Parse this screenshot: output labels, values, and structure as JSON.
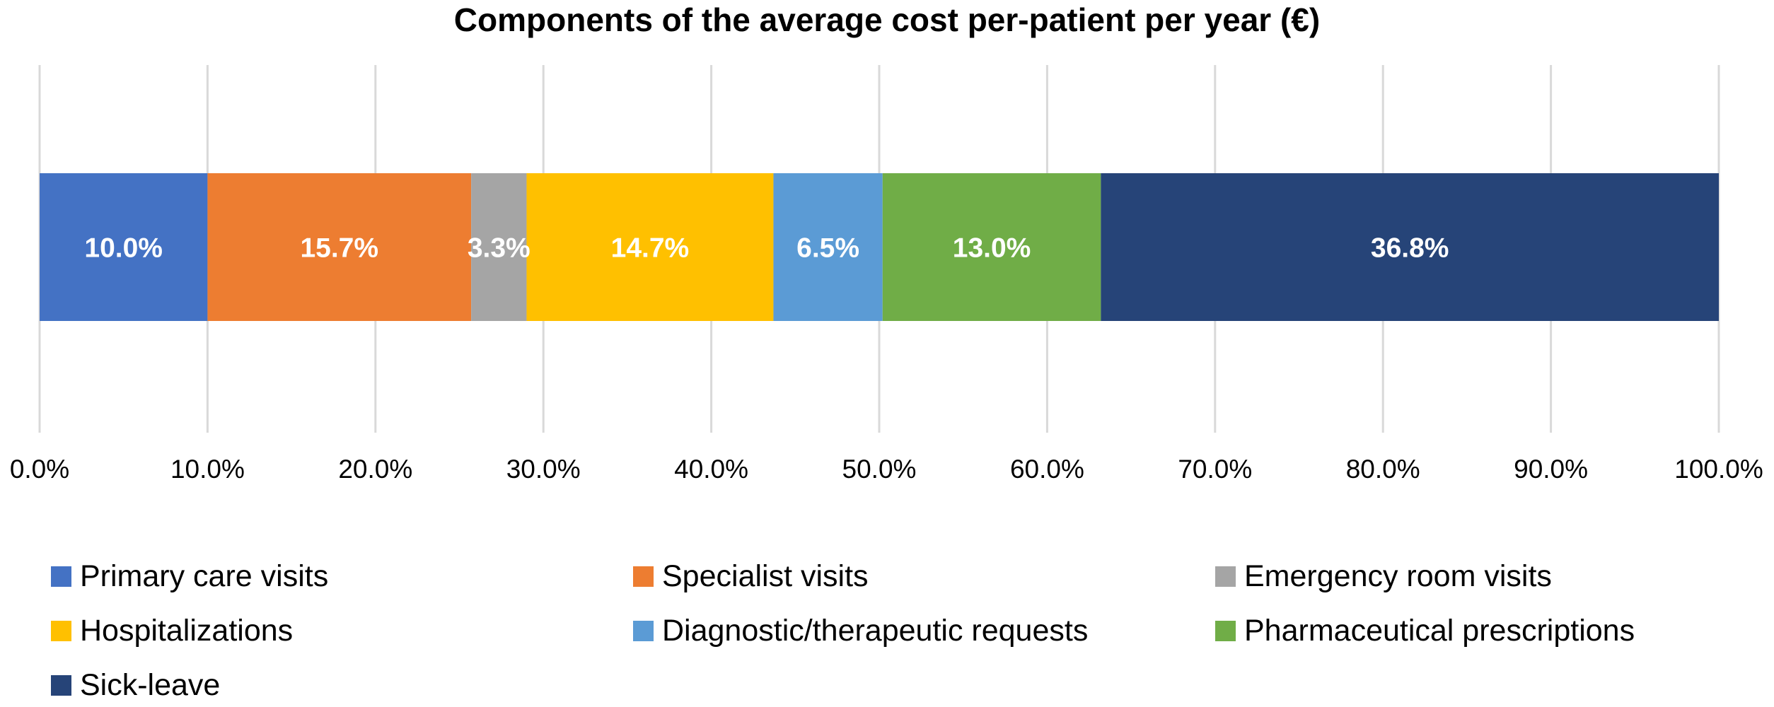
{
  "chart_data": {
    "type": "bar",
    "orientation": "horizontal",
    "stacked": true,
    "title": "Components of the average cost per-patient per year (€)",
    "xlim": [
      0,
      100
    ],
    "x_ticks": [
      "0.0%",
      "10.0%",
      "20.0%",
      "30.0%",
      "40.0%",
      "50.0%",
      "60.0%",
      "70.0%",
      "80.0%",
      "90.0%",
      "100.0%"
    ],
    "grid": true,
    "legend_position": "bottom",
    "series": [
      {
        "name": "Primary care visits",
        "value": 10.0,
        "label": "10.0%",
        "color": "#4472C4"
      },
      {
        "name": "Specialist visits",
        "value": 15.7,
        "label": "15.7%",
        "color": "#ED7D31"
      },
      {
        "name": "Emergency room visits",
        "value": 3.3,
        "label": "3.3%",
        "color": "#A5A5A5"
      },
      {
        "name": "Hospitalizations",
        "value": 14.7,
        "label": "14.7%",
        "color": "#FFC000"
      },
      {
        "name": "Diagnostic/therapeutic requests",
        "value": 6.5,
        "label": "6.5%",
        "color": "#5B9BD5"
      },
      {
        "name": "Pharmaceutical prescriptions",
        "value": 13.0,
        "label": "13.0%",
        "color": "#70AD47"
      },
      {
        "name": "Sick-leave",
        "value": 36.8,
        "label": "36.8%",
        "color": "#264478"
      }
    ]
  }
}
